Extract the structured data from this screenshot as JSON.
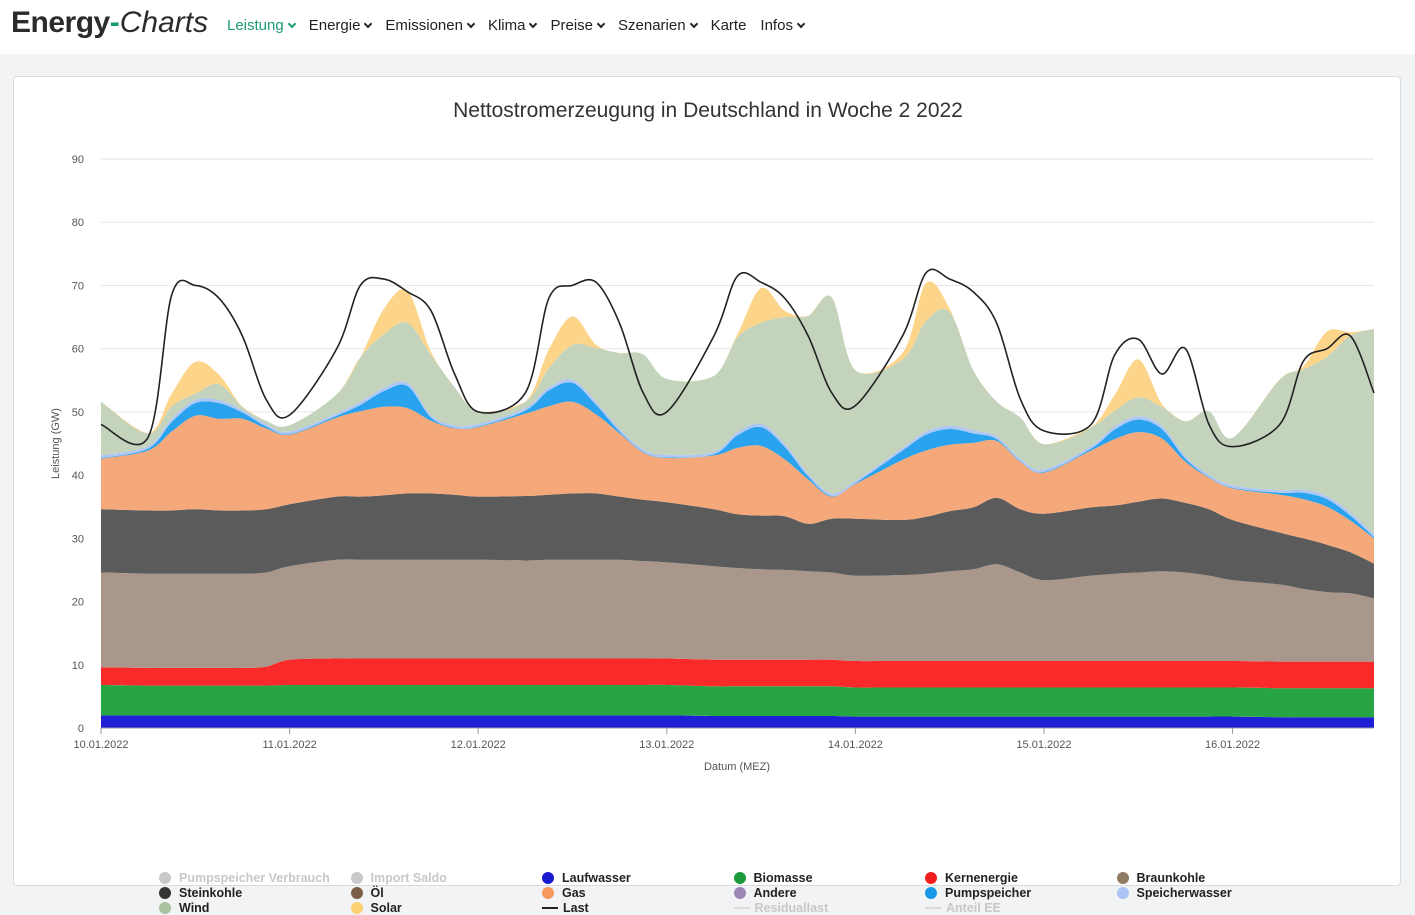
{
  "brand": {
    "part1": "Energy",
    "part2": "-",
    "part3": "Charts"
  },
  "nav": [
    {
      "label": "Leistung",
      "dropdown": true,
      "active": true
    },
    {
      "label": "Energie",
      "dropdown": true
    },
    {
      "label": "Emissionen",
      "dropdown": true
    },
    {
      "label": "Klima",
      "dropdown": true
    },
    {
      "label": "Preise",
      "dropdown": true
    },
    {
      "label": "Szenarien",
      "dropdown": true
    },
    {
      "label": "Karte",
      "dropdown": false
    },
    {
      "label": "Infos",
      "dropdown": true
    }
  ],
  "colors": {
    "accent": "#1a9a77"
  },
  "chart_data": {
    "type": "area",
    "title": "Nettostromerzeugung in Deutschland in Woche 2 2022",
    "xlabel": "Datum (MEZ)",
    "ylabel": "Leistung (GW)",
    "ylim": [
      0,
      90
    ],
    "yticks": [
      0,
      10,
      20,
      30,
      40,
      50,
      60,
      70,
      80,
      90
    ],
    "grid": true,
    "x_start": "10.01.2022",
    "x_end": "16.01.2022 18:00",
    "xticks": [
      "10.01.2022",
      "11.01.2022",
      "12.01.2022",
      "13.01.2022",
      "14.01.2022",
      "15.01.2022",
      "16.01.2022"
    ],
    "x_hours": [
      0,
      6,
      9,
      12,
      15,
      18,
      21,
      24,
      30,
      33,
      36,
      39,
      42,
      45,
      48,
      54,
      57,
      60,
      63,
      66,
      69,
      72,
      78,
      81,
      84,
      87,
      90,
      93,
      96,
      102,
      105,
      108,
      111,
      114,
      117,
      120,
      126,
      129,
      132,
      135,
      138,
      141,
      144,
      150,
      153,
      156,
      159,
      162
    ],
    "series": [
      {
        "name": "Laufwasser",
        "color": "#1f1fd6",
        "values": [
          2.0,
          2.0,
          2.0,
          2.0,
          2.0,
          2.0,
          2.0,
          2.0,
          2.0,
          2.0,
          2.0,
          2.0,
          2.0,
          2.0,
          2.0,
          2.0,
          2.0,
          2.0,
          2.0,
          2.0,
          2.0,
          2.0,
          1.9,
          1.9,
          1.9,
          1.9,
          1.9,
          1.9,
          1.8,
          1.8,
          1.8,
          1.8,
          1.8,
          1.8,
          1.8,
          1.8,
          1.8,
          1.8,
          1.8,
          1.8,
          1.8,
          1.8,
          1.8,
          1.7,
          1.7,
          1.7,
          1.7,
          1.7
        ]
      },
      {
        "name": "Biomasse",
        "color": "#27a544",
        "values": [
          4.8,
          4.7,
          4.7,
          4.7,
          4.7,
          4.7,
          4.7,
          4.8,
          4.8,
          4.8,
          4.8,
          4.8,
          4.8,
          4.8,
          4.8,
          4.8,
          4.8,
          4.8,
          4.8,
          4.8,
          4.8,
          4.8,
          4.7,
          4.7,
          4.7,
          4.7,
          4.7,
          4.7,
          4.6,
          4.6,
          4.6,
          4.6,
          4.6,
          4.6,
          4.6,
          4.6,
          4.6,
          4.6,
          4.6,
          4.6,
          4.6,
          4.6,
          4.6,
          4.6,
          4.6,
          4.6,
          4.6,
          4.6
        ]
      },
      {
        "name": "Kernenergie",
        "color": "#fa2a2a",
        "values": [
          2.8,
          2.8,
          2.8,
          2.8,
          2.8,
          2.8,
          3.0,
          4.0,
          4.2,
          4.2,
          4.2,
          4.2,
          4.2,
          4.2,
          4.2,
          4.2,
          4.2,
          4.2,
          4.2,
          4.2,
          4.2,
          4.2,
          4.2,
          4.2,
          4.2,
          4.2,
          4.2,
          4.2,
          4.2,
          4.2,
          4.2,
          4.2,
          4.2,
          4.2,
          4.2,
          4.2,
          4.2,
          4.2,
          4.2,
          4.2,
          4.2,
          4.2,
          4.2,
          4.2,
          4.2,
          4.2,
          4.2,
          4.2
        ]
      },
      {
        "name": "Braunkohle",
        "color": "#a8978a",
        "values": [
          15.0,
          14.9,
          14.9,
          14.9,
          14.9,
          14.9,
          14.9,
          14.8,
          15.6,
          15.6,
          15.6,
          15.6,
          15.6,
          15.6,
          15.6,
          15.5,
          15.6,
          15.6,
          15.6,
          15.6,
          15.4,
          15.2,
          14.8,
          14.5,
          14.3,
          14.2,
          14.0,
          13.8,
          13.5,
          13.6,
          13.8,
          14.2,
          14.5,
          15.3,
          14.0,
          12.8,
          13.5,
          13.8,
          14.0,
          14.2,
          14.0,
          13.5,
          12.8,
          12.2,
          11.5,
          11.0,
          10.8,
          10.0
        ]
      },
      {
        "name": "Steinkohle",
        "color": "#5b5b5b",
        "values": [
          10.0,
          10.0,
          10.0,
          10.2,
          10.0,
          10.0,
          10.0,
          9.8,
          10.0,
          10.0,
          10.2,
          10.5,
          10.5,
          10.3,
          10.0,
          10.2,
          10.3,
          10.5,
          10.5,
          10.0,
          9.7,
          9.5,
          9.0,
          8.5,
          8.5,
          8.5,
          7.5,
          8.5,
          9.0,
          8.7,
          9.0,
          9.5,
          9.8,
          10.5,
          10.0,
          10.5,
          10.8,
          10.8,
          11.2,
          11.5,
          11.0,
          10.5,
          9.5,
          8.2,
          8.0,
          7.5,
          6.5,
          5.5
        ]
      },
      {
        "name": "Gas",
        "color": "#f5a97a",
        "values": [
          8.0,
          9.5,
          12.5,
          14.8,
          14.5,
          14.5,
          12.8,
          11.0,
          12.5,
          13.5,
          14.0,
          13.5,
          11.5,
          10.5,
          11.0,
          13.0,
          14.0,
          14.5,
          12.5,
          10.0,
          7.5,
          7.0,
          8.5,
          10.5,
          11.0,
          9.0,
          7.0,
          3.5,
          5.5,
          9.5,
          10.5,
          10.5,
          10.2,
          9.0,
          7.5,
          6.5,
          9.0,
          10.5,
          11.0,
          9.5,
          6.5,
          5.0,
          5.0,
          6.0,
          6.2,
          6.0,
          5.0,
          4.0
        ]
      },
      {
        "name": "Pumpspeicher",
        "color": "#2aa3ee",
        "values": [
          0.1,
          0.3,
          1.5,
          2.0,
          2.5,
          1.0,
          0.3,
          0.1,
          0.3,
          1.0,
          2.5,
          3.5,
          0.5,
          0.1,
          0.1,
          0.5,
          2.5,
          3.0,
          1.5,
          0.3,
          0.1,
          0.1,
          0.2,
          2.0,
          3.0,
          2.0,
          0.5,
          0.1,
          0.1,
          1.5,
          2.5,
          2.5,
          1.5,
          0.3,
          0.1,
          0.1,
          0.3,
          1.5,
          2.0,
          1.5,
          0.5,
          0.1,
          0.1,
          0.3,
          1.0,
          1.2,
          0.8,
          0.2
        ]
      },
      {
        "name": "Speicherwasser",
        "color": "#aec7f5",
        "values": [
          0.4,
          0.4,
          0.5,
          0.5,
          0.5,
          0.4,
          0.4,
          0.4,
          0.4,
          0.5,
          0.5,
          0.5,
          0.4,
          0.4,
          0.4,
          0.4,
          0.5,
          0.5,
          0.5,
          0.4,
          0.4,
          0.4,
          0.4,
          0.5,
          0.5,
          0.5,
          0.4,
          0.4,
          0.4,
          0.4,
          0.5,
          0.5,
          0.5,
          0.4,
          0.4,
          0.4,
          0.4,
          0.5,
          0.5,
          0.5,
          0.4,
          0.4,
          0.4,
          0.4,
          0.5,
          0.5,
          0.5,
          0.4
        ]
      },
      {
        "name": "Wind",
        "color": "#c3d3bc",
        "values": [
          8.5,
          2.0,
          2.0,
          1.0,
          2.5,
          0.5,
          0.5,
          1.0,
          3.0,
          7.0,
          8.5,
          9.5,
          9.5,
          6.0,
          2.0,
          1.0,
          3.0,
          5.5,
          8.5,
          12.0,
          15.0,
          12.0,
          12.0,
          15.0,
          16.0,
          20.0,
          25.0,
          31.0,
          17.5,
          14.0,
          17.5,
          18.0,
          9.5,
          5.5,
          6.5,
          4.0,
          3.0,
          2.5,
          3.0,
          3.0,
          5.5,
          10.0,
          7.5,
          17.5,
          19.0,
          22.0,
          28.0,
          32.5
        ]
      },
      {
        "name": "Solar",
        "color": "#fdd58a",
        "values": [
          0.0,
          0.0,
          2.0,
          5.0,
          1.5,
          0.0,
          0.0,
          0.0,
          0.0,
          0.0,
          4.0,
          5.0,
          0.5,
          0.0,
          0.0,
          0.0,
          3.0,
          4.5,
          0.5,
          0.0,
          0.0,
          0.0,
          0.0,
          0.5,
          5.5,
          1.0,
          0.0,
          0.0,
          0.0,
          1.0,
          6.0,
          0.5,
          0.0,
          0.0,
          0.0,
          0.0,
          0.0,
          2.5,
          6.0,
          0.5,
          0.0,
          0.0,
          0.0,
          0.0,
          0.5,
          4.0,
          0.5,
          0.0
        ]
      },
      {
        "name": "Last",
        "color": "#222222",
        "kind": "line",
        "values": [
          48.0,
          46.0,
          68.5,
          70.0,
          68.0,
          62.0,
          52.0,
          49.5,
          60.0,
          70.0,
          71.0,
          69.0,
          66.0,
          56.0,
          50.0,
          53.0,
          68.0,
          70.0,
          70.5,
          64.0,
          53.0,
          50.0,
          62.0,
          71.5,
          70.5,
          68.0,
          62.0,
          53.0,
          51.0,
          62.0,
          72.0,
          71.0,
          69.0,
          64.0,
          52.0,
          47.0,
          48.0,
          59.0,
          61.5,
          56.0,
          60.0,
          48.0,
          44.5,
          48.0,
          58.0,
          60.0,
          62.0,
          53.0
        ]
      }
    ],
    "legend": [
      {
        "name": "Pumpspeicher Verbrauch",
        "color": "#c9c9c9",
        "marker": "dot",
        "disabled": true
      },
      {
        "name": "Import Saldo",
        "color": "#c9c9c9",
        "marker": "dot",
        "disabled": true
      },
      {
        "name": "Laufwasser",
        "color": "#1a1ad0",
        "marker": "dot"
      },
      {
        "name": "Biomasse",
        "color": "#1b9a3c",
        "marker": "dot"
      },
      {
        "name": "Kernenergie",
        "color": "#f01e1e",
        "marker": "dot"
      },
      {
        "name": "Braunkohle",
        "color": "#8f7a63",
        "marker": "dot"
      },
      {
        "name": "Steinkohle",
        "color": "#333333",
        "marker": "dot"
      },
      {
        "name": "Öl",
        "color": "#7b5e45",
        "marker": "dot"
      },
      {
        "name": "Gas",
        "color": "#f59a5c",
        "marker": "dot"
      },
      {
        "name": "Andere",
        "color": "#9b86b8",
        "marker": "dot"
      },
      {
        "name": "Pumpspeicher",
        "color": "#1a98e8",
        "marker": "dot"
      },
      {
        "name": "Speicherwasser",
        "color": "#aac4f8",
        "marker": "dot"
      },
      {
        "name": "Wind",
        "color": "#a9c2a0",
        "marker": "dot"
      },
      {
        "name": "Solar",
        "color": "#fdd173",
        "marker": "dot"
      },
      {
        "name": "Last",
        "color": "#222222",
        "marker": "line"
      },
      {
        "name": "Residuallast",
        "color": "#dcdcdc",
        "marker": "line",
        "disabled": true
      },
      {
        "name": "Anteil EE",
        "color": "#dcdcdc",
        "marker": "line",
        "disabled": true
      }
    ]
  }
}
